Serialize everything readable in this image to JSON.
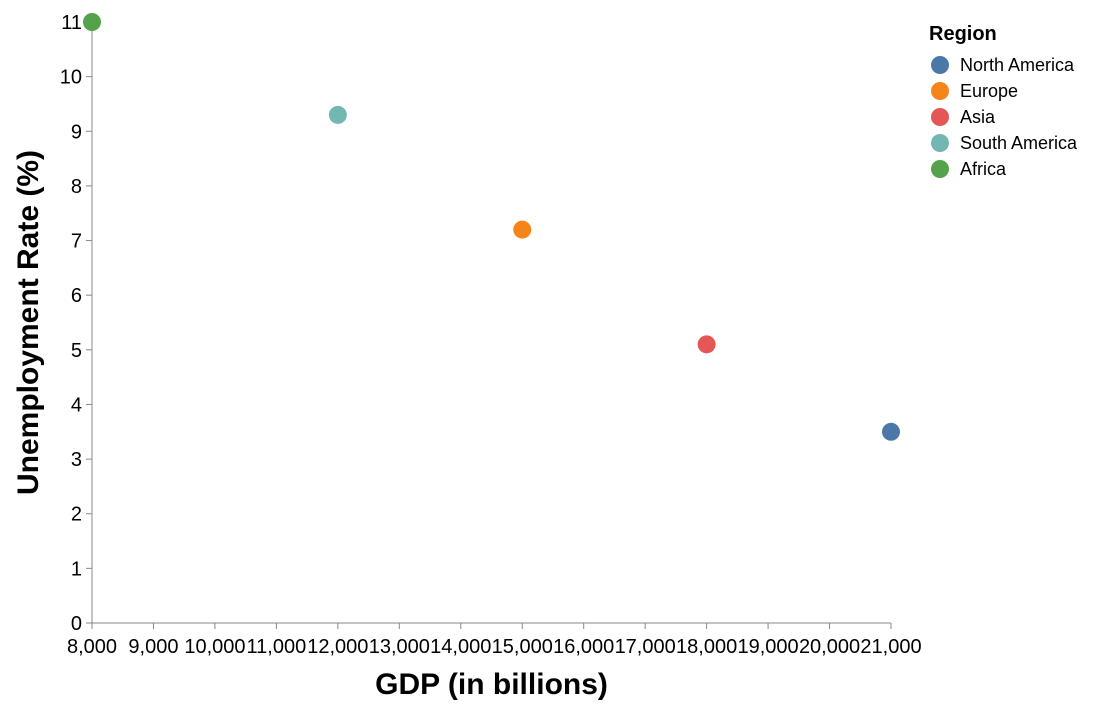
{
  "chart_data": {
    "type": "scatter",
    "xlabel": "GDP (in billions)",
    "ylabel": "Unemployment Rate (%)",
    "xlim": [
      8000,
      21000
    ],
    "ylim": [
      0,
      11
    ],
    "x_ticks": [
      8000,
      9000,
      10000,
      11000,
      12000,
      13000,
      14000,
      15000,
      16000,
      17000,
      18000,
      19000,
      20000,
      21000
    ],
    "x_tick_labels": [
      "8,000",
      "9,000",
      "10,000",
      "11,000",
      "12,000",
      "13,000",
      "14,000",
      "15,000",
      "16,000",
      "17,000",
      "18,000",
      "19,000",
      "20,000",
      "21,000"
    ],
    "y_ticks": [
      0,
      1,
      2,
      3,
      4,
      5,
      6,
      7,
      8,
      9,
      10,
      11
    ],
    "y_tick_labels": [
      "0",
      "1",
      "2",
      "3",
      "4",
      "5",
      "6",
      "7",
      "8",
      "9",
      "10",
      "11"
    ],
    "grid": false,
    "legend": {
      "title": "Region",
      "placement": "top-right"
    },
    "series": [
      {
        "name": "North America",
        "color": "#4c78a8",
        "x": [
          21000
        ],
        "y": [
          3.5
        ]
      },
      {
        "name": "Europe",
        "color": "#f58518",
        "x": [
          15000
        ],
        "y": [
          7.2
        ]
      },
      {
        "name": "Asia",
        "color": "#e45756",
        "x": [
          18000
        ],
        "y": [
          5.1
        ]
      },
      {
        "name": "South America",
        "color": "#72b7b2",
        "x": [
          12000
        ],
        "y": [
          9.3
        ]
      },
      {
        "name": "Africa",
        "color": "#54a24b",
        "x": [
          8000
        ],
        "y": [
          11
        ]
      }
    ]
  }
}
